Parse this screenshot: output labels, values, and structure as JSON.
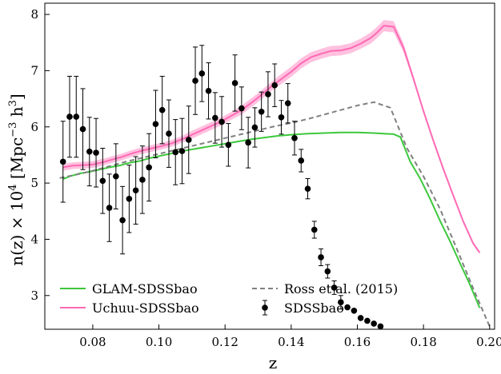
{
  "chart_data": {
    "type": "line",
    "xlabel": "z",
    "ylabel": "n(z) × 10",
    "ylabel_sup": "4",
    "ylabel_unit": " [Mpc",
    "ylabel_unit_sup": "−3",
    "ylabel_unit_tail": " h",
    "ylabel_unit_tail_sup": "3",
    "ylabel_close": "]",
    "xlim": [
      0.0655,
      0.2015
    ],
    "ylim": [
      2.4,
      8.2
    ],
    "xticks": [
      0.08,
      0.1,
      0.12,
      0.14,
      0.16,
      0.18,
      0.2
    ],
    "xtick_labels": [
      "0.08",
      "0.10",
      "0.12",
      "0.14",
      "0.16",
      "0.18",
      "0.20"
    ],
    "yticks": [
      3,
      4,
      5,
      6,
      7,
      8
    ],
    "ytick_labels": [
      "3",
      "4",
      "5",
      "6",
      "7",
      "8"
    ],
    "grid": false,
    "legend_placement": "bottom",
    "series": [
      {
        "name": "GLAM-SDSSbao",
        "color": "#3cc83c",
        "x": [
          0.071,
          0.073,
          0.076,
          0.079,
          0.082,
          0.085,
          0.088,
          0.091,
          0.094,
          0.097,
          0.1,
          0.104,
          0.108,
          0.112,
          0.116,
          0.12,
          0.124,
          0.128,
          0.132,
          0.136,
          0.14,
          0.145,
          0.15,
          0.155,
          0.16,
          0.165,
          0.168,
          0.171,
          0.173,
          0.176,
          0.179,
          0.182,
          0.185,
          0.188,
          0.191,
          0.194,
          0.197
        ],
        "values": [
          5.07,
          5.12,
          5.17,
          5.2,
          5.24,
          5.28,
          5.31,
          5.36,
          5.39,
          5.44,
          5.48,
          5.53,
          5.58,
          5.62,
          5.66,
          5.7,
          5.74,
          5.78,
          5.81,
          5.84,
          5.86,
          5.88,
          5.89,
          5.9,
          5.9,
          5.89,
          5.88,
          5.87,
          5.82,
          5.38,
          5.08,
          4.72,
          4.33,
          3.97,
          3.58,
          3.2,
          2.78
        ]
      },
      {
        "name": "Uchuu-SDSSbao",
        "color": "#ff69b4",
        "band_color": "#ffb6d9",
        "x": [
          0.071,
          0.074,
          0.077,
          0.08,
          0.083,
          0.086,
          0.089,
          0.092,
          0.095,
          0.098,
          0.101,
          0.104,
          0.107,
          0.11,
          0.113,
          0.116,
          0.119,
          0.122,
          0.125,
          0.128,
          0.131,
          0.134,
          0.137,
          0.14,
          0.143,
          0.146,
          0.149,
          0.152,
          0.155,
          0.158,
          0.161,
          0.164,
          0.166,
          0.168,
          0.171,
          0.174,
          0.177,
          0.18,
          0.183,
          0.186,
          0.189,
          0.192,
          0.195,
          0.197
        ],
        "values": [
          5.28,
          5.31,
          5.32,
          5.33,
          5.37,
          5.42,
          5.47,
          5.53,
          5.58,
          5.62,
          5.66,
          5.71,
          5.78,
          5.86,
          5.94,
          6.02,
          6.1,
          6.2,
          6.3,
          6.43,
          6.57,
          6.72,
          6.85,
          6.98,
          7.13,
          7.24,
          7.3,
          7.35,
          7.36,
          7.4,
          7.48,
          7.58,
          7.68,
          7.8,
          7.78,
          7.4,
          6.85,
          6.28,
          5.75,
          5.25,
          4.78,
          4.32,
          3.93,
          3.76
        ],
        "band_halfwidth": [
          0.06,
          0.06,
          0.06,
          0.06,
          0.06,
          0.06,
          0.06,
          0.06,
          0.06,
          0.06,
          0.06,
          0.06,
          0.06,
          0.07,
          0.07,
          0.07,
          0.07,
          0.07,
          0.08,
          0.08,
          0.08,
          0.08,
          0.09,
          0.09,
          0.09,
          0.09,
          0.09,
          0.09,
          0.09,
          0.09,
          0.09,
          0.1,
          0.1,
          0.1,
          0.1,
          0.08,
          0.05,
          0.03,
          0.02,
          0.02,
          0.02,
          0.02,
          0.02,
          0.02
        ]
      },
      {
        "name": "Ross et al. (2015)",
        "color": "#808080",
        "dashed": true,
        "x": [
          0.07,
          0.075,
          0.08,
          0.085,
          0.09,
          0.095,
          0.1,
          0.105,
          0.11,
          0.115,
          0.12,
          0.125,
          0.13,
          0.135,
          0.14,
          0.145,
          0.15,
          0.155,
          0.16,
          0.165,
          0.17,
          0.175,
          0.18,
          0.185,
          0.19,
          0.195,
          0.2
        ],
        "values": [
          5.09,
          5.15,
          5.22,
          5.3,
          5.38,
          5.45,
          5.52,
          5.59,
          5.66,
          5.73,
          5.8,
          5.87,
          5.94,
          6.01,
          6.07,
          6.14,
          6.22,
          6.3,
          6.38,
          6.44,
          6.34,
          5.62,
          5.12,
          4.54,
          3.84,
          3.13,
          2.45
        ]
      },
      {
        "name": "SDSSbao",
        "color": "#000000",
        "type": "errorbar",
        "x": [
          0.071,
          0.073,
          0.075,
          0.077,
          0.079,
          0.081,
          0.083,
          0.085,
          0.087,
          0.089,
          0.091,
          0.093,
          0.095,
          0.097,
          0.099,
          0.101,
          0.103,
          0.105,
          0.107,
          0.109,
          0.111,
          0.113,
          0.115,
          0.117,
          0.119,
          0.121,
          0.123,
          0.125,
          0.127,
          0.129,
          0.131,
          0.133,
          0.135,
          0.137,
          0.139,
          0.141,
          0.143,
          0.145,
          0.147,
          0.149,
          0.151,
          0.153,
          0.155,
          0.157,
          0.159,
          0.161,
          0.163,
          0.165,
          0.167,
          0.169,
          0.171,
          0.173,
          0.175,
          0.177,
          0.179,
          0.181,
          0.183,
          0.185,
          0.187,
          0.189,
          0.191,
          0.193,
          0.195,
          0.197
        ],
        "values": [
          5.38,
          6.18,
          6.18,
          5.96,
          5.56,
          5.54,
          5.04,
          4.56,
          5.12,
          4.34,
          4.72,
          4.87,
          5.06,
          5.28,
          6.05,
          6.3,
          5.88,
          5.55,
          5.57,
          5.77,
          6.82,
          6.95,
          6.64,
          6.16,
          6.09,
          5.68,
          6.78,
          6.33,
          5.72,
          5.99,
          6.27,
          6.58,
          6.74,
          6.17,
          6.42,
          5.8,
          5.4,
          4.9,
          4.17,
          3.68,
          3.43,
          3.14,
          2.88,
          2.79,
          2.73,
          2.6,
          2.55,
          2.5,
          2.45,
          2.42,
          2.4,
          2.4,
          2.4,
          2.4,
          2.4,
          2.4,
          2.4,
          2.4,
          2.4,
          2.4,
          2.4,
          2.4,
          2.4,
          2.4
        ],
        "errors": [
          0.72,
          0.72,
          0.72,
          0.72,
          0.61,
          0.61,
          0.58,
          0.6,
          0.58,
          0.6,
          0.6,
          0.6,
          0.6,
          0.6,
          0.6,
          0.6,
          0.6,
          0.58,
          0.58,
          0.6,
          0.6,
          0.5,
          0.5,
          0.45,
          0.45,
          0.38,
          0.5,
          0.38,
          0.45,
          0.35,
          0.35,
          0.4,
          0.38,
          0.3,
          0.35,
          0.3,
          0.2,
          0.18,
          0.15,
          0.15,
          0.12,
          0.12,
          0.12,
          0,
          0,
          0,
          0,
          0,
          0,
          0,
          0,
          0,
          0,
          0,
          0,
          0,
          0,
          0,
          0,
          0,
          0,
          0,
          0,
          0
        ]
      }
    ]
  }
}
